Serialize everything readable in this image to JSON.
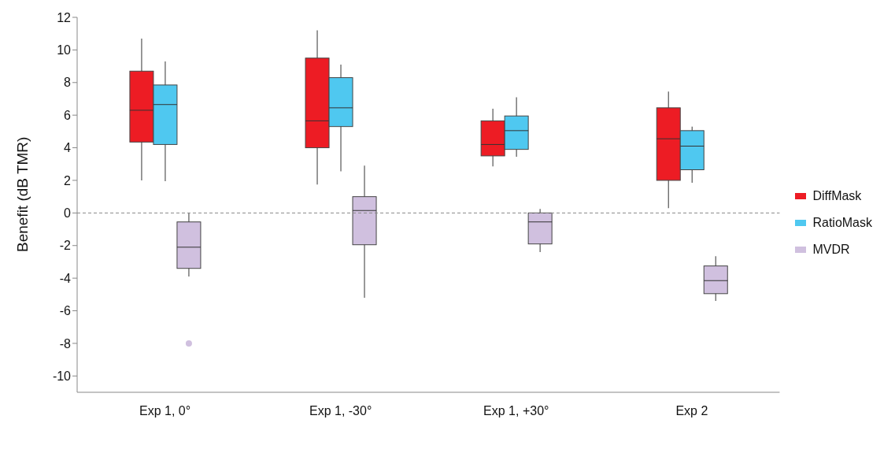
{
  "chart_data": {
    "type": "box",
    "ylabel": "Benefit (dB TMR)",
    "categories": [
      "Exp 1, 0°",
      "Exp 1, -30°",
      "Exp 1, +30°",
      "Exp 2"
    ],
    "ylim": [
      -11,
      12
    ],
    "yticks": [
      -10,
      -8,
      -6,
      -4,
      -2,
      0,
      2,
      4,
      6,
      8,
      10,
      12
    ],
    "grid": false,
    "legend": "right",
    "ref_lines": [
      {
        "axis": "y",
        "value": 0,
        "color": "#888888",
        "line_style": "dashed"
      }
    ],
    "series": [
      {
        "name": "DiffMask",
        "color": "#ed1c24",
        "boxes": [
          {
            "low": 2.0,
            "q1": 4.35,
            "median": 6.3,
            "q3": 8.7,
            "high": 10.7
          },
          {
            "low": 1.75,
            "q1": 4.0,
            "median": 5.65,
            "q3": 9.5,
            "high": 11.2
          },
          {
            "low": 2.85,
            "q1": 3.5,
            "median": 4.2,
            "q3": 5.65,
            "high": 6.4
          },
          {
            "low": 0.3,
            "q1": 2.0,
            "median": 4.55,
            "q3": 6.45,
            "high": 7.45
          }
        ]
      },
      {
        "name": "RatioMask",
        "color": "#4fc8f0",
        "boxes": [
          {
            "low": 1.95,
            "q1": 4.2,
            "median": 6.65,
            "q3": 7.85,
            "high": 9.3
          },
          {
            "low": 2.55,
            "q1": 5.3,
            "median": 6.45,
            "q3": 8.3,
            "high": 9.1
          },
          {
            "low": 3.45,
            "q1": 3.9,
            "median": 5.05,
            "q3": 5.95,
            "high": 7.1
          },
          {
            "low": 1.85,
            "q1": 2.65,
            "median": 4.1,
            "q3": 5.05,
            "high": 5.3
          }
        ]
      },
      {
        "name": "MVDR",
        "color": "#d0c0df",
        "boxes": [
          {
            "low": -3.9,
            "q1": -3.4,
            "median": -2.1,
            "q3": -0.55,
            "high": 0,
            "outliers": [
              -8.0
            ]
          },
          {
            "low": -5.2,
            "q1": -1.95,
            "median": 0.15,
            "q3": 1.0,
            "high": 2.9
          },
          {
            "low": -2.4,
            "q1": -1.9,
            "median": -0.55,
            "q3": 0,
            "high": 0.25
          },
          {
            "low": -5.4,
            "q1": -4.95,
            "median": -4.15,
            "q3": -3.25,
            "high": -2.65
          }
        ]
      }
    ]
  }
}
